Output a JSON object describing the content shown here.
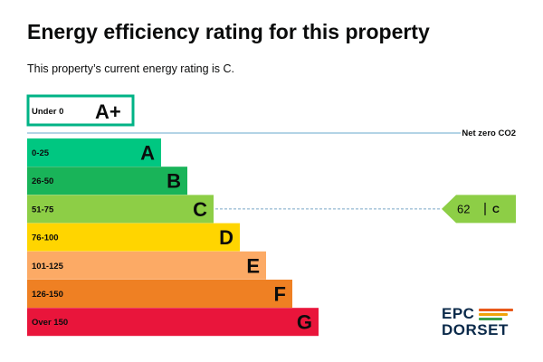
{
  "header": {
    "title": "Energy efficiency rating for this property",
    "subtitle": "This property’s current energy rating is C."
  },
  "chart_data": {
    "type": "bar",
    "title": "Energy efficiency rating for this property",
    "top_band": {
      "range": "Under 0",
      "letter": "A+",
      "color": "#00b386"
    },
    "net_zero_label": "Net zero CO2",
    "net_zero_line_color": "#b3d4e6",
    "bands": [
      {
        "range": "0-25",
        "letter": "A",
        "color": "#00c781"
      },
      {
        "range": "26-50",
        "letter": "B",
        "color": "#19b459"
      },
      {
        "range": "51-75",
        "letter": "C",
        "color": "#8dce46"
      },
      {
        "range": "76-100",
        "letter": "D",
        "color": "#ffd500"
      },
      {
        "range": "101-125",
        "letter": "E",
        "color": "#fcaa65"
      },
      {
        "range": "126-150",
        "letter": "F",
        "color": "#ef8023"
      },
      {
        "range": "Over 150",
        "letter": "G",
        "color": "#e9153b"
      }
    ],
    "current": {
      "value": 62,
      "band": "C",
      "color": "#8dce46",
      "value_text": "62",
      "band_text": "C"
    }
  },
  "logo": {
    "line1": "EPC",
    "line2": "DORSET",
    "colors": [
      "#e8591a",
      "#f0a30a",
      "#3aa14a"
    ]
  }
}
